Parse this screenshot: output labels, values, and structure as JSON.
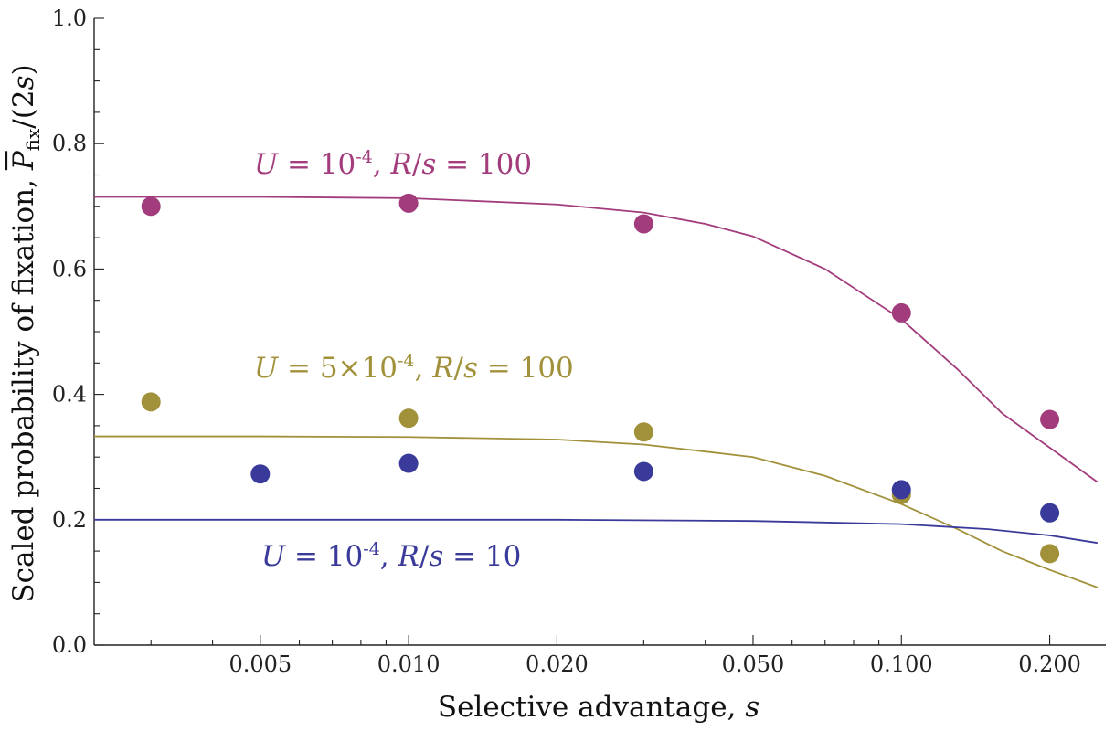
{
  "chart_data": {
    "type": "scatter",
    "title": "",
    "xlabel": {
      "text": "Selective advantage, ",
      "var": "s"
    },
    "ylabel": {
      "text": "Scaled probability of fixation, ",
      "var": "P",
      "sub": "fix",
      "tail_open": "/(2",
      "tail_var": "s",
      "tail_close": ")"
    },
    "x_scale": "log",
    "xlim": [
      0.0023,
      0.26
    ],
    "ylim": [
      0,
      1.0
    ],
    "x_ticks": [
      {
        "value": 0.005,
        "label": "0.005"
      },
      {
        "value": 0.01,
        "label": "0.010"
      },
      {
        "value": 0.02,
        "label": "0.020"
      },
      {
        "value": 0.05,
        "label": "0.050"
      },
      {
        "value": 0.1,
        "label": "0.100"
      },
      {
        "value": 0.2,
        "label": "0.200"
      }
    ],
    "y_ticks": [
      {
        "value": 0.0,
        "label": "0.0"
      },
      {
        "value": 0.2,
        "label": "0.2"
      },
      {
        "value": 0.4,
        "label": "0.4"
      },
      {
        "value": 0.6,
        "label": "0.6"
      },
      {
        "value": 0.8,
        "label": "0.8"
      },
      {
        "value": 1.0,
        "label": "1.0"
      }
    ],
    "grid": false,
    "series": [
      {
        "key": "purple",
        "color": "#a23c7c",
        "label": {
          "u_var": "U",
          "u_eq": " = 10",
          "u_exp": "-4",
          "sep": ", ",
          "r_var": "R",
          "slash": "/",
          "s_var": "s",
          "r_eq": " = 100"
        },
        "points": [
          {
            "x": 0.003,
            "y": 0.7
          },
          {
            "x": 0.01,
            "y": 0.705
          },
          {
            "x": 0.03,
            "y": 0.672
          },
          {
            "x": 0.1,
            "y": 0.53
          },
          {
            "x": 0.2,
            "y": 0.36
          }
        ],
        "curve": [
          {
            "x": 0.0023,
            "y": 0.715
          },
          {
            "x": 0.005,
            "y": 0.715
          },
          {
            "x": 0.01,
            "y": 0.713
          },
          {
            "x": 0.02,
            "y": 0.703
          },
          {
            "x": 0.03,
            "y": 0.69
          },
          {
            "x": 0.04,
            "y": 0.672
          },
          {
            "x": 0.05,
            "y": 0.652
          },
          {
            "x": 0.07,
            "y": 0.6
          },
          {
            "x": 0.1,
            "y": 0.52
          },
          {
            "x": 0.13,
            "y": 0.44
          },
          {
            "x": 0.16,
            "y": 0.37
          },
          {
            "x": 0.2,
            "y": 0.315
          },
          {
            "x": 0.25,
            "y": 0.26
          }
        ]
      },
      {
        "key": "olive",
        "color": "#a1913a",
        "label": {
          "u_var": "U",
          "u_eq": " = 5×10",
          "u_exp": "-4",
          "sep": ", ",
          "r_var": "R",
          "slash": "/",
          "s_var": "s",
          "r_eq": " = 100"
        },
        "points": [
          {
            "x": 0.003,
            "y": 0.388
          },
          {
            "x": 0.01,
            "y": 0.362
          },
          {
            "x": 0.03,
            "y": 0.34
          },
          {
            "x": 0.1,
            "y": 0.24
          },
          {
            "x": 0.2,
            "y": 0.146
          }
        ],
        "curve": [
          {
            "x": 0.0023,
            "y": 0.333
          },
          {
            "x": 0.005,
            "y": 0.333
          },
          {
            "x": 0.01,
            "y": 0.332
          },
          {
            "x": 0.02,
            "y": 0.328
          },
          {
            "x": 0.03,
            "y": 0.32
          },
          {
            "x": 0.05,
            "y": 0.3
          },
          {
            "x": 0.07,
            "y": 0.27
          },
          {
            "x": 0.1,
            "y": 0.225
          },
          {
            "x": 0.13,
            "y": 0.185
          },
          {
            "x": 0.16,
            "y": 0.15
          },
          {
            "x": 0.2,
            "y": 0.12
          },
          {
            "x": 0.25,
            "y": 0.092
          }
        ]
      },
      {
        "key": "blue",
        "color": "#3a3a9a",
        "label": {
          "u_var": "U",
          "u_eq": " = 10",
          "u_exp": "-4",
          "sep": ", ",
          "r_var": "R",
          "slash": "/",
          "s_var": "s",
          "r_eq": " = 10"
        },
        "points": [
          {
            "x": 0.005,
            "y": 0.273
          },
          {
            "x": 0.01,
            "y": 0.29
          },
          {
            "x": 0.03,
            "y": 0.277
          },
          {
            "x": 0.1,
            "y": 0.248
          },
          {
            "x": 0.2,
            "y": 0.211
          }
        ],
        "curve": [
          {
            "x": 0.0023,
            "y": 0.2
          },
          {
            "x": 0.01,
            "y": 0.2
          },
          {
            "x": 0.02,
            "y": 0.2
          },
          {
            "x": 0.05,
            "y": 0.198
          },
          {
            "x": 0.1,
            "y": 0.193
          },
          {
            "x": 0.15,
            "y": 0.185
          },
          {
            "x": 0.2,
            "y": 0.175
          },
          {
            "x": 0.25,
            "y": 0.163
          }
        ]
      }
    ]
  }
}
